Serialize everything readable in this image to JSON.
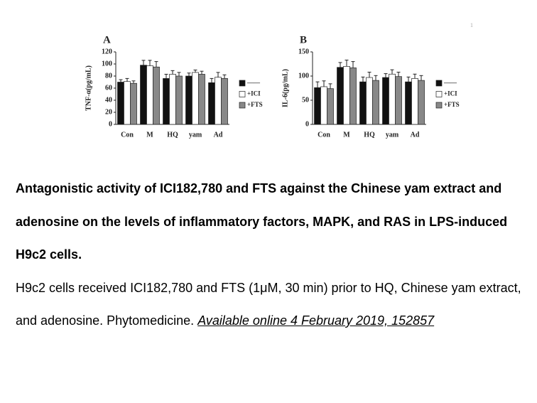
{
  "chart_data": [
    {
      "type": "bar",
      "title": "A",
      "y_label": "TNF-α(pg/mL)",
      "categories": [
        "Con",
        "M",
        "HQ",
        "yam",
        "Ad"
      ],
      "series": [
        {
          "name": "——",
          "color": "#111111",
          "values": [
            70,
            98,
            76,
            80,
            69
          ],
          "errors": [
            4,
            8,
            7,
            5,
            7
          ]
        },
        {
          "name": "+ICI",
          "color": "#ffffff",
          "values": [
            71,
            97,
            83,
            86,
            78
          ],
          "errors": [
            5,
            9,
            6,
            4,
            8
          ]
        },
        {
          "name": "+FTS",
          "color": "#888888",
          "values": [
            68,
            95,
            80,
            83,
            76
          ],
          "errors": [
            4,
            9,
            6,
            5,
            6
          ]
        }
      ],
      "ylim": [
        0,
        120
      ],
      "yticks": [
        0,
        20,
        40,
        60,
        80,
        100,
        120
      ]
    },
    {
      "type": "bar",
      "title": "B",
      "y_label": "IL-6(pg/mL)",
      "categories": [
        "Con",
        "M",
        "HQ",
        "yam",
        "Ad"
      ],
      "series": [
        {
          "name": "——",
          "color": "#111111",
          "values": [
            76,
            118,
            88,
            97,
            88
          ],
          "errors": [
            12,
            10,
            10,
            8,
            10
          ]
        },
        {
          "name": "+ICI",
          "color": "#ffffff",
          "values": [
            78,
            120,
            97,
            104,
            95
          ],
          "errors": [
            12,
            13,
            11,
            9,
            9
          ]
        },
        {
          "name": "+FTS",
          "color": "#888888",
          "values": [
            74,
            117,
            91,
            99,
            91
          ],
          "errors": [
            10,
            13,
            10,
            9,
            10
          ]
        }
      ],
      "ylim": [
        0,
        150
      ],
      "yticks": [
        0,
        50,
        100,
        150
      ]
    }
  ],
  "page_mark": "1",
  "caption": {
    "title": "Antagonistic activity of ICI182,780 and FTS against the Chinese yam extract and adenosine on the levels of inflammatory factors, MAPK, and RAS in LPS-induced H9c2 cells.",
    "body": "H9c2 cells received ICI182,780 and FTS (1μM, 30 min) prior to HQ, Chinese yam extract, and adenosine. Phytomedicine.",
    "link": "Available online 4 February 2019, 152857"
  }
}
